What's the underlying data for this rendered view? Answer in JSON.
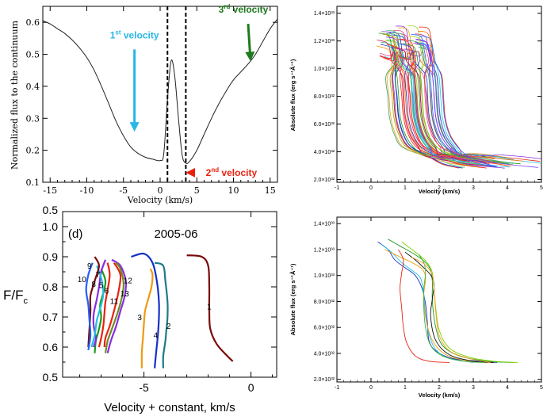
{
  "colors": {
    "first_velocity": "#29b6e8",
    "second_velocity": "#e8220f",
    "third_velocity": "#1e7a1e",
    "palette": [
      "#e8220f",
      "#1a9a1a",
      "#1530c8",
      "#f0a010",
      "#20c0e0",
      "#8a2be2",
      "#ff6a00",
      "#50c878",
      "#c01060",
      "#2060ff",
      "#a0d020",
      "#ff3030",
      "#30a060",
      "#f04080",
      "#7a40ff"
    ],
    "panel_c_lines": [
      "#1530c8",
      "#20c0e0",
      "#1a9a1a",
      "#f0a010",
      "#e8220f",
      "#80d000",
      "#111111",
      "#40b040",
      "#ff9a20"
    ],
    "panel_d_lines": {
      "1": "#7a0a0a",
      "2": "#1e7a8a",
      "3": "#f09a10",
      "4": "#1530c8",
      "5": "#1a9a1a",
      "6": "#e8220f",
      "7": "#8a2be2",
      "8": "#20c0e0",
      "9": "#7a0a0a",
      "10": "#2060ff",
      "11": "#e8220f",
      "12": "#8a2be2",
      "13": "#6b8e23"
    }
  },
  "chart_data": [
    {
      "id": "a",
      "type": "line",
      "title": "",
      "xlabel": "Velocity (km/s)",
      "ylabel": "Normalized flux to the continuum",
      "xlim": [
        -16,
        16
      ],
      "ylim": [
        0.1,
        0.65
      ],
      "xticks": [
        -15,
        -10,
        -5,
        0,
        5,
        10,
        15
      ],
      "yticks": [
        0.1,
        0.2,
        0.3,
        0.4,
        0.5,
        0.6
      ],
      "series": [
        {
          "name": "line profile",
          "x": [
            -16,
            -15,
            -14,
            -13,
            -12,
            -11,
            -10,
            -9,
            -8,
            -7,
            -6,
            -5,
            -4,
            -3,
            -2,
            -1,
            0,
            0.5,
            1,
            1.5,
            2,
            2.5,
            3,
            3.5,
            4,
            5,
            6,
            7,
            8,
            9,
            10,
            11,
            12,
            13,
            14,
            15,
            16
          ],
          "y": [
            0.605,
            0.595,
            0.58,
            0.565,
            0.545,
            0.52,
            0.49,
            0.45,
            0.4,
            0.345,
            0.29,
            0.245,
            0.21,
            0.19,
            0.178,
            0.172,
            0.168,
            0.19,
            0.36,
            0.48,
            0.43,
            0.3,
            0.185,
            0.16,
            0.165,
            0.2,
            0.25,
            0.3,
            0.345,
            0.385,
            0.42,
            0.445,
            0.47,
            0.5,
            0.54,
            0.58,
            0.61
          ]
        }
      ],
      "vlines": [
        1.0,
        3.5
      ],
      "annotations": [
        {
          "text": "1st velocity",
          "base": "1",
          "sup": "st",
          "rest": " velocity",
          "x": -3.5,
          "y": 0.54,
          "arrow_to": [
            -3.5,
            0.27
          ],
          "color_key": "first_velocity"
        },
        {
          "text": "2nd velocity",
          "base": "2",
          "sup": "nd",
          "rest": " velocity",
          "x": 9.5,
          "y": 0.15,
          "arrow_to": [
            4.0,
            0.13
          ],
          "color_key": "second_velocity"
        },
        {
          "text": "3rd velocity",
          "base": "3",
          "sup": "rd",
          "rest": " velocity",
          "x": 12.0,
          "y": 0.62,
          "arrow_to": [
            12.3,
            0.49
          ],
          "color_key": "third_velocity"
        }
      ]
    },
    {
      "id": "b",
      "type": "line",
      "xlabel": "Velocity (km/s)",
      "ylabel": "Absolute flux (erg s⁻¹Å⁻¹)",
      "xlim": [
        -1,
        5
      ],
      "ylim": [
        1.8e+32,
        1.45e+33
      ],
      "xticks": [
        -1,
        0,
        1,
        2,
        3,
        4,
        5
      ],
      "yticks": [
        {
          "v": 2e+32,
          "label": "2.0×10³²"
        },
        {
          "v": 4e+32,
          "label": "4.0×10³²"
        },
        {
          "v": 6e+32,
          "label": "6.0×10³²"
        },
        {
          "v": 8e+32,
          "label": "8.0×10³²"
        },
        {
          "v": 1e+33,
          "label": "1.0×10³³"
        },
        {
          "v": 1.2e+33,
          "label": "1.2×10³³"
        },
        {
          "v": 1.4e+33,
          "label": "1.4×10³³"
        }
      ],
      "note": "many overlapping line-profile velocity curves",
      "template": {
        "flux": [
          1.2e+33,
          1.18e+33,
          1.12e+33,
          1.05e+33,
          9.5e+32,
          8e+32,
          6.5e+32,
          5.2e+32,
          4.3e+32,
          3.7e+32,
          3.3e+32,
          3e+32
        ],
        "vel": [
          0.6,
          0.9,
          1.0,
          1.05,
          1.1,
          1.15,
          1.2,
          1.35,
          1.6,
          2.0,
          2.6,
          3.3
        ]
      },
      "series_count": 60
    },
    {
      "id": "c",
      "type": "line",
      "xlabel": "Velocity (km/s)",
      "ylabel": "Absolute flux (erg s⁻¹Å⁻¹)",
      "xlim": [
        -1,
        5
      ],
      "ylim": [
        1.8e+32,
        1.45e+33
      ],
      "xticks": [
        -1,
        0,
        1,
        2,
        3,
        4,
        5
      ],
      "yticks": [
        {
          "v": 2e+32,
          "label": "2.0×10³²"
        },
        {
          "v": 4e+32,
          "label": "4.0×10³²"
        },
        {
          "v": 6e+32,
          "label": "6.0×10³²"
        },
        {
          "v": 8e+32,
          "label": "8.0×10³²"
        },
        {
          "v": 1e+33,
          "label": "1.0×10³³"
        },
        {
          "v": 1.2e+33,
          "label": "1.2×10³³"
        },
        {
          "v": 1.4e+33,
          "label": "1.4×10³³"
        }
      ],
      "series": [
        {
          "vel": [
            0.2,
            0.5,
            0.7,
            1.0,
            1.3,
            1.5,
            1.6,
            1.65,
            1.7,
            1.9,
            2.4,
            3.2,
            3.7
          ],
          "flux": [
            1.26e+33,
            1.2e+33,
            1.12e+33,
            1.06e+33,
            1e+33,
            9e+32,
            7.8e+32,
            6.5e+32,
            5e+32,
            4.2e+32,
            3.6e+32,
            3.4e+32,
            3.3e+32
          ]
        },
        {
          "vel": [
            0.3,
            0.6,
            0.9,
            1.2,
            1.45,
            1.55,
            1.6,
            1.7,
            1.9,
            2.3,
            3.0
          ],
          "flux": [
            1.24e+33,
            1.18e+33,
            1.1e+33,
            1.04e+33,
            9.8e+32,
            8.5e+32,
            7e+32,
            5.5e+32,
            4.3e+32,
            3.6e+32,
            3.3e+32
          ]
        },
        {
          "vel": [
            0.5,
            0.9,
            1.3,
            1.6,
            1.75,
            1.8,
            1.8,
            1.9,
            2.1,
            2.6,
            3.4,
            4.2
          ],
          "flux": [
            1.28e+33,
            1.22e+33,
            1.16e+33,
            1.1e+33,
            1.04e+33,
            9.5e+32,
            8e+32,
            6e+32,
            4.6e+32,
            3.8e+32,
            3.4e+32,
            3.3e+32
          ]
        },
        {
          "vel": [
            0.4,
            0.8,
            1.2,
            1.5,
            1.6,
            1.55,
            1.6,
            1.8,
            2.2,
            2.9,
            3.6
          ],
          "flux": [
            1.2e+33,
            1.15e+33,
            1.1e+33,
            1.05e+33,
            9.8e+32,
            8.5e+32,
            6.8e+32,
            5e+32,
            3.9e+32,
            3.4e+32,
            3.3e+32
          ]
        },
        {
          "vel": [
            0.8,
            0.95,
            0.9,
            0.85,
            0.9,
            0.95,
            1.05,
            1.3,
            1.7,
            2.3
          ],
          "flux": [
            1.2e+33,
            1.12e+33,
            1.02e+33,
            9e+32,
            7.5e+32,
            6e+32,
            4.8e+32,
            3.8e+32,
            3.4e+32,
            3.3e+32
          ]
        },
        {
          "vel": [
            0.9,
            1.2,
            1.5,
            1.7,
            1.8,
            1.85,
            1.9,
            2.0,
            2.3,
            2.9,
            3.6,
            4.3
          ],
          "flux": [
            1.26e+33,
            1.2e+33,
            1.14e+33,
            1.08e+33,
            1.02e+33,
            9e+32,
            7.5e+32,
            5.8e+32,
            4.4e+32,
            3.7e+32,
            3.4e+32,
            3.3e+32
          ]
        },
        {
          "vel": [
            1.0,
            1.3,
            1.55,
            1.7,
            1.8,
            1.85,
            1.8,
            1.75,
            1.9,
            2.3,
            3.0,
            3.6
          ],
          "flux": [
            1.18e+33,
            1.12e+33,
            1.06e+33,
            1.02e+33,
            9.8e+32,
            9.2e+32,
            8.2e+32,
            6.8e+32,
            5e+32,
            3.9e+32,
            3.4e+32,
            3.3e+32
          ]
        },
        {
          "vel": [
            1.4,
            1.55,
            1.6,
            1.55,
            1.55,
            1.6,
            1.75,
            2.1,
            2.7,
            3.3
          ],
          "flux": [
            1.16e+33,
            1.1e+33,
            1.02e+33,
            9e+32,
            7.5e+32,
            6e+32,
            4.6e+32,
            3.8e+32,
            3.4e+32,
            3.3e+32
          ]
        },
        {
          "vel": [
            1.2,
            1.5,
            1.7,
            1.8,
            1.85,
            1.9,
            2.0,
            2.3,
            2.9,
            3.5
          ],
          "flux": [
            1.14e+33,
            1.1e+33,
            1.05e+33,
            1e+33,
            9e+32,
            7.2e+32,
            5.4e+32,
            4.2e+32,
            3.6e+32,
            3.3e+32
          ]
        }
      ]
    },
    {
      "id": "d",
      "type": "line",
      "title": "2005-06",
      "panel_label": "(d)",
      "xlabel": "Velocity + constant, km/s",
      "ylabel": "F/F",
      "ylabel_sub": "c",
      "xlim": [
        -8.8,
        1.2
      ],
      "ylim": [
        0.5,
        1.05
      ],
      "xticks": [
        {
          "v": -5,
          "label": "-5"
        },
        {
          "v": 0,
          "label": "0"
        }
      ],
      "yticks": [
        {
          "v": 0.5,
          "label": "0.5"
        },
        {
          "v": 0.6,
          "label": "0.6"
        },
        {
          "v": 0.7,
          "label": "0.7"
        },
        {
          "v": 0.8,
          "label": "0.8"
        },
        {
          "v": 0.9,
          "label": "0.9"
        },
        {
          "v": 1.0,
          "label": "1.0"
        }
      ],
      "top_partial_tick": {
        "v": 1.05,
        "label": "0.5"
      },
      "series": [
        {
          "name": "1",
          "v": [
            -3.0,
            -2.3,
            -2.0,
            -1.95,
            -1.95,
            -1.9,
            -1.6,
            -1.1,
            -0.85
          ],
          "f": [
            0.905,
            0.9,
            0.87,
            0.8,
            0.72,
            0.66,
            0.61,
            0.57,
            0.553
          ]
        },
        {
          "name": "2",
          "v": [
            -4.5,
            -4.1,
            -4.0,
            -3.9,
            -3.9,
            -3.95,
            -4.0,
            -4.1,
            -4.1
          ],
          "f": [
            0.88,
            0.87,
            0.82,
            0.75,
            0.7,
            0.66,
            0.62,
            0.57,
            0.53
          ]
        },
        {
          "name": "3",
          "v": [
            -4.7,
            -4.6,
            -4.65,
            -4.8,
            -4.95,
            -5.0,
            -5.05,
            -5.1,
            -5.1
          ],
          "f": [
            0.86,
            0.84,
            0.8,
            0.76,
            0.72,
            0.68,
            0.63,
            0.58,
            0.53
          ]
        },
        {
          "name": "4",
          "v": [
            -5.6,
            -5.0,
            -4.6,
            -4.4,
            -4.3,
            -4.3,
            -4.35,
            -4.45,
            -4.5
          ],
          "f": [
            0.9,
            0.91,
            0.88,
            0.82,
            0.75,
            0.7,
            0.64,
            0.57,
            0.53
          ]
        },
        {
          "name": "5",
          "v": [
            -7.0,
            -6.8,
            -6.9,
            -7.05,
            -7.0,
            -7.1,
            -7.25,
            -7.3
          ],
          "f": [
            0.86,
            0.82,
            0.78,
            0.74,
            0.7,
            0.66,
            0.62,
            0.58
          ]
        },
        {
          "name": "6",
          "v": [
            -6.7,
            -6.6,
            -6.7,
            -6.8,
            -6.85,
            -6.9,
            -7.0,
            -7.1
          ],
          "f": [
            0.88,
            0.84,
            0.79,
            0.75,
            0.71,
            0.67,
            0.63,
            0.6
          ]
        },
        {
          "name": "7",
          "v": [
            -6.8,
            -7.0,
            -7.1,
            -7.2,
            -7.35,
            -7.35,
            -7.25,
            -7.35
          ],
          "f": [
            0.89,
            0.85,
            0.8,
            0.76,
            0.71,
            0.67,
            0.63,
            0.6
          ]
        },
        {
          "name": "8",
          "v": [
            -7.2,
            -7.0,
            -6.9,
            -7.0,
            -7.2,
            -7.3,
            -7.45
          ],
          "f": [
            0.87,
            0.83,
            0.78,
            0.74,
            0.69,
            0.64,
            0.6
          ]
        },
        {
          "name": "9",
          "v": [
            -7.3,
            -7.1,
            -7.3,
            -7.5,
            -7.5,
            -7.55,
            -7.6
          ],
          "f": [
            0.9,
            0.87,
            0.82,
            0.77,
            0.72,
            0.66,
            0.6
          ]
        },
        {
          "name": "10",
          "v": [
            -7.4,
            -7.6,
            -7.7,
            -7.6,
            -7.55,
            -7.5,
            -7.6
          ],
          "f": [
            0.88,
            0.84,
            0.79,
            0.74,
            0.69,
            0.64,
            0.59
          ]
        },
        {
          "name": "11",
          "v": [
            -6.4,
            -6.1,
            -6.2,
            -6.4,
            -6.6,
            -6.8,
            -6.85
          ],
          "f": [
            0.88,
            0.84,
            0.78,
            0.72,
            0.67,
            0.63,
            0.6
          ]
        },
        {
          "name": "12",
          "v": [
            -6.5,
            -6.1,
            -5.85,
            -5.9,
            -6.1,
            -6.3,
            -6.55,
            -6.7
          ],
          "f": [
            0.89,
            0.87,
            0.82,
            0.77,
            0.72,
            0.67,
            0.62,
            0.58
          ]
        },
        {
          "name": "13",
          "v": [
            -6.3,
            -6.1,
            -5.95,
            -6.05,
            -6.25,
            -6.5,
            -6.7,
            -6.8
          ],
          "f": [
            0.88,
            0.86,
            0.81,
            0.76,
            0.71,
            0.66,
            0.62,
            0.58
          ]
        }
      ]
    }
  ]
}
